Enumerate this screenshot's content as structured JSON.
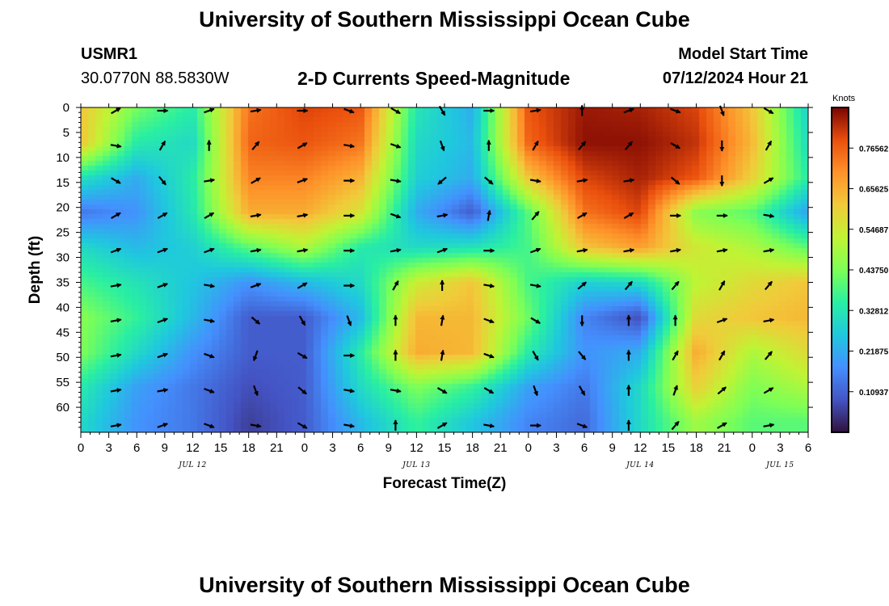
{
  "header": {
    "title": "University of Southern Mississippi Ocean Cube",
    "station_id": "USMR1",
    "coords": "30.0770N  88.5830W",
    "plot_title": "2-D Currents Speed-Magnitude",
    "model_label": "Model Start Time",
    "model_time": "07/12/2024 Hour 21"
  },
  "footer": {
    "title": "University of Southern Mississippi Ocean Cube"
  },
  "chart_data": {
    "type": "heatmap",
    "title": "2-D Currents Speed-Magnitude",
    "xlabel": "Forecast Time(Z)",
    "ylabel": "Depth (ft)",
    "x_hours_range": [
      0,
      78
    ],
    "ylim": [
      0,
      65
    ],
    "x_tick_labels": [
      "0",
      "3",
      "6",
      "9",
      "12",
      "15",
      "18",
      "21",
      "0",
      "3",
      "6",
      "9",
      "12",
      "15",
      "18",
      "21",
      "0",
      "3",
      "6",
      "9",
      "12",
      "15",
      "18",
      "21",
      "0",
      "3",
      "6"
    ],
    "y_tick_labels": [
      "0",
      "5",
      "10",
      "15",
      "20",
      "25",
      "30",
      "35",
      "40",
      "45",
      "50",
      "55",
      "60"
    ],
    "date_labels": [
      {
        "text": "JUL 12",
        "hour": 12
      },
      {
        "text": "JUL 13",
        "hour": 36
      },
      {
        "text": "JUL 14",
        "hour": 60
      },
      {
        "text": "JUL 15",
        "hour": 75
      }
    ],
    "colorbar": {
      "label": "Knots",
      "min": 0.0,
      "max": 0.875,
      "tick_labels": [
        "0.76562",
        "0.65625",
        "0.54687",
        "0.43750",
        "0.32812",
        "0.21875",
        "0.10937"
      ],
      "tick_values": [
        0.76562,
        0.65625,
        0.54687,
        0.4375,
        0.32812,
        0.21875,
        0.10937
      ]
    },
    "speed_anchors": {
      "depths_ft": [
        0,
        7,
        14,
        21,
        28,
        35,
        42,
        49,
        56,
        63
      ],
      "hours": [
        0,
        6,
        12,
        18,
        24,
        30,
        36,
        42,
        48,
        54,
        60,
        66,
        72,
        78
      ],
      "values": [
        [
          0.62,
          0.43,
          0.34,
          0.74,
          0.8,
          0.78,
          0.33,
          0.22,
          0.78,
          0.85,
          0.84,
          0.8,
          0.62,
          0.28
        ],
        [
          0.62,
          0.34,
          0.3,
          0.76,
          0.78,
          0.74,
          0.3,
          0.24,
          0.76,
          0.86,
          0.86,
          0.82,
          0.64,
          0.3
        ],
        [
          0.32,
          0.22,
          0.34,
          0.72,
          0.72,
          0.65,
          0.28,
          0.22,
          0.62,
          0.8,
          0.84,
          0.78,
          0.6,
          0.34
        ],
        [
          0.14,
          0.18,
          0.33,
          0.66,
          0.66,
          0.56,
          0.22,
          0.1,
          0.4,
          0.74,
          0.8,
          0.45,
          0.4,
          0.2
        ],
        [
          0.3,
          0.24,
          0.28,
          0.4,
          0.5,
          0.34,
          0.3,
          0.32,
          0.38,
          0.62,
          0.68,
          0.55,
          0.5,
          0.4
        ],
        [
          0.38,
          0.32,
          0.26,
          0.18,
          0.24,
          0.3,
          0.54,
          0.62,
          0.38,
          0.28,
          0.3,
          0.52,
          0.58,
          0.62
        ],
        [
          0.45,
          0.36,
          0.24,
          0.1,
          0.1,
          0.24,
          0.64,
          0.64,
          0.42,
          0.16,
          0.08,
          0.58,
          0.62,
          0.64
        ],
        [
          0.44,
          0.3,
          0.18,
          0.1,
          0.1,
          0.34,
          0.66,
          0.64,
          0.34,
          0.18,
          0.22,
          0.66,
          0.5,
          0.58
        ],
        [
          0.34,
          0.2,
          0.14,
          0.08,
          0.1,
          0.3,
          0.44,
          0.36,
          0.2,
          0.14,
          0.3,
          0.6,
          0.44,
          0.5
        ],
        [
          0.3,
          0.18,
          0.14,
          0.06,
          0.1,
          0.24,
          0.36,
          0.26,
          0.16,
          0.12,
          0.3,
          0.48,
          0.4,
          0.4
        ]
      ]
    },
    "vector_depths_ft": [
      0,
      7,
      14,
      21,
      28,
      35,
      42,
      49,
      56,
      63
    ],
    "vector_hours": [
      3.75,
      8.75,
      13.75,
      18.75,
      23.75,
      28.75,
      33.75,
      38.75,
      43.75,
      48.75,
      53.75,
      58.75,
      63.75,
      68.75,
      73.75
    ],
    "vector_directions_deg": [
      [
        60,
        90,
        70,
        80,
        90,
        110,
        120,
        150,
        90,
        80,
        0,
        70,
        110,
        160,
        120
      ],
      [
        100,
        30,
        0,
        40,
        60,
        100,
        110,
        160,
        0,
        30,
        40,
        40,
        120,
        180,
        30
      ],
      [
        120,
        140,
        80,
        60,
        70,
        90,
        100,
        230,
        130,
        100,
        80,
        80,
        130,
        180,
        60
      ],
      [
        60,
        60,
        60,
        80,
        80,
        90,
        110,
        80,
        10,
        40,
        60,
        60,
        90,
        90,
        100
      ],
      [
        70,
        70,
        70,
        80,
        80,
        90,
        80,
        70,
        90,
        70,
        80,
        80,
        80,
        80,
        80
      ],
      [
        80,
        70,
        100,
        70,
        60,
        90,
        30,
        0,
        100,
        100,
        50,
        40,
        40,
        30,
        40
      ],
      [
        80,
        70,
        100,
        130,
        150,
        160,
        0,
        10,
        110,
        120,
        180,
        0,
        0,
        70,
        80
      ],
      [
        80,
        70,
        110,
        200,
        120,
        90,
        0,
        10,
        110,
        150,
        140,
        0,
        30,
        30,
        40
      ],
      [
        80,
        80,
        110,
        160,
        130,
        100,
        100,
        120,
        120,
        160,
        150,
        0,
        20,
        50,
        60
      ],
      [
        80,
        70,
        110,
        100,
        120,
        100,
        0,
        60,
        100,
        90,
        110,
        0,
        40,
        60,
        80
      ]
    ]
  }
}
